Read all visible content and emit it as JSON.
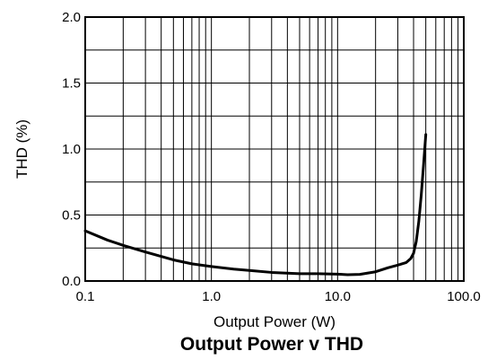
{
  "chart_data": {
    "type": "line",
    "title": "Output Power v THD",
    "xlabel": "Output Power (W)",
    "ylabel": "THD (%)",
    "x_scale": "log",
    "xlim": [
      0.1,
      100
    ],
    "ylim": [
      0,
      2.0
    ],
    "grid": true,
    "x_ticks": [
      0.1,
      1,
      10,
      100
    ],
    "x_tick_labels": [
      "0.1",
      "1.0",
      "10.0",
      "100.0"
    ],
    "y_ticks": [
      0,
      0.5,
      1,
      1.5,
      2
    ],
    "y_tick_labels": [
      "0.0",
      "0.5",
      "1.0",
      "1.5",
      "2.0"
    ],
    "series": [
      {
        "x": [
          0.1,
          0.15,
          0.2,
          0.3,
          0.5,
          0.7,
          1,
          1.5,
          2,
          3,
          5,
          7,
          10,
          12,
          15,
          20,
          25,
          30,
          35,
          38,
          40,
          42,
          44,
          46,
          48,
          50
        ],
        "y": [
          0.38,
          0.31,
          0.27,
          0.22,
          0.16,
          0.13,
          0.11,
          0.09,
          0.08,
          0.065,
          0.055,
          0.055,
          0.052,
          0.048,
          0.05,
          0.07,
          0.1,
          0.12,
          0.14,
          0.17,
          0.21,
          0.3,
          0.45,
          0.65,
          0.88,
          1.11
        ],
        "color": "#000000"
      }
    ]
  }
}
